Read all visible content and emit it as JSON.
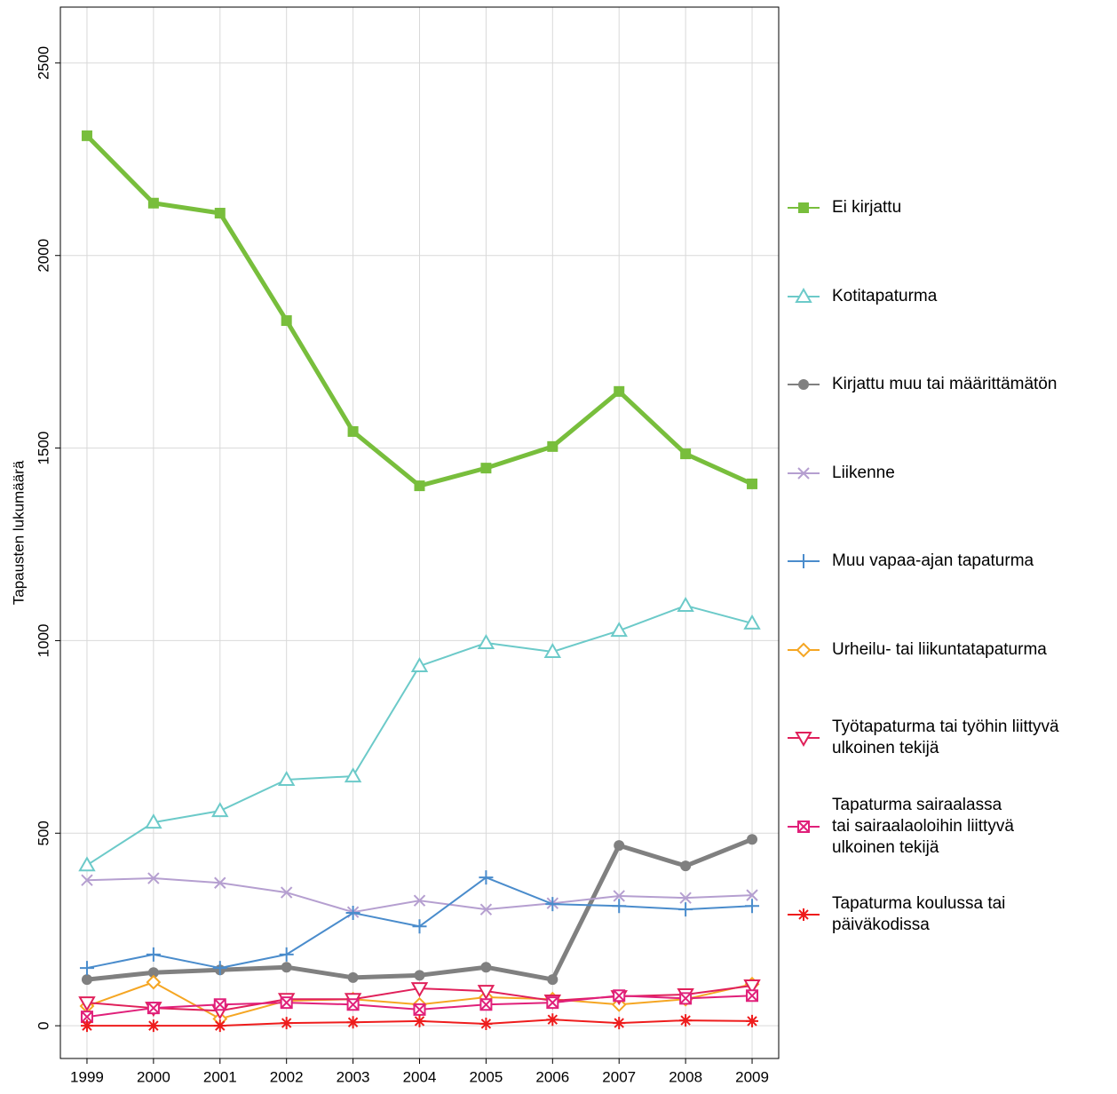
{
  "chart_data": {
    "type": "line",
    "y_label": "Tapausten lukumäärä",
    "x": [
      1999,
      2000,
      2001,
      2002,
      2003,
      2004,
      2005,
      2006,
      2007,
      2008,
      2009
    ],
    "xlim": [
      1998.6,
      2009.4
    ],
    "xticks": [
      1999,
      2000,
      2001,
      2002,
      2003,
      2004,
      2005,
      2006,
      2007,
      2008,
      2009
    ],
    "ylim": [
      -85,
      2645
    ],
    "yticks": [
      0,
      500,
      1000,
      1500,
      2000,
      2500
    ],
    "grid": true,
    "legend": "right",
    "series": [
      {
        "name": "Ei kirjattu",
        "color": "#78be3c",
        "marker": "square",
        "linewidth": 5,
        "values": [
          2311,
          2136,
          2110,
          1831,
          1543,
          1402,
          1448,
          1504,
          1647,
          1485,
          1407
        ]
      },
      {
        "name": "Kotitapaturma",
        "color": "#6ccac9",
        "marker": "triangle-up",
        "linewidth": 2,
        "values": [
          417,
          528,
          558,
          639,
          648,
          934,
          994,
          971,
          1026,
          1091,
          1045
        ]
      },
      {
        "name": "Kirjattu muu tai määrittämätön",
        "color": "#808080",
        "marker": "circle",
        "linewidth": 5,
        "values": [
          120,
          138,
          145,
          152,
          125,
          131,
          152,
          120,
          468,
          415,
          484
        ]
      },
      {
        "name": "Liikenne",
        "color": "#b59fd0",
        "marker": "x",
        "linewidth": 2,
        "values": [
          378,
          383,
          371,
          346,
          295,
          325,
          302,
          318,
          337,
          332,
          339
        ]
      },
      {
        "name": "Muu vapaa-ajan tapaturma",
        "color": "#4a8ccc",
        "marker": "plus",
        "linewidth": 2,
        "values": [
          150,
          185,
          150,
          185,
          293,
          258,
          385,
          316,
          311,
          302,
          311
        ]
      },
      {
        "name": "Urheilu- tai liikuntatapaturma",
        "color": "#f5a623",
        "marker": "diamond",
        "linewidth": 2,
        "values": [
          51,
          113,
          18,
          65,
          69,
          55,
          74,
          69,
          55,
          69,
          108
        ]
      },
      {
        "name": "Työtapaturma tai työhin liittyvä\nulkoinen tekijä",
        "color": "#e0205a",
        "marker": "triangle-down",
        "linewidth": 2,
        "values": [
          60,
          46,
          39,
          69,
          69,
          97,
          90,
          65,
          76,
          81,
          104
        ]
      },
      {
        "name": "Tapaturma sairaalassa\ntai sairaalaoloihin liittyvä\nulkoinen tekijä",
        "color": "#e0207a",
        "marker": "square-x",
        "linewidth": 2,
        "values": [
          23,
          46,
          55,
          60,
          55,
          42,
          55,
          60,
          78,
          71,
          78
        ]
      },
      {
        "name": "Tapaturma koulussa tai\npäiväkodissa",
        "color": "#ee1c1c",
        "marker": "asterisk",
        "linewidth": 2,
        "values": [
          0,
          0,
          0,
          7,
          9,
          12,
          5,
          16,
          7,
          14,
          12
        ]
      }
    ]
  }
}
